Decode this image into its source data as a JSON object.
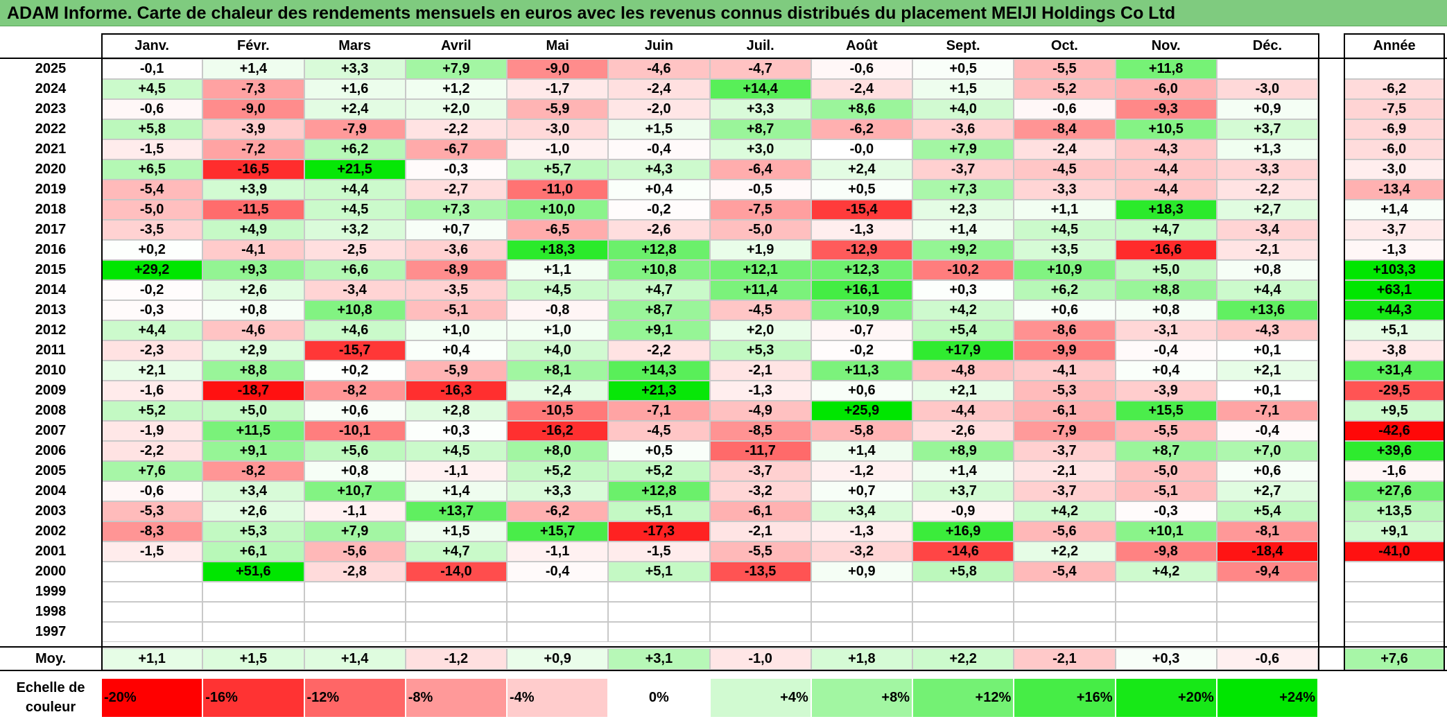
{
  "title": "ADAM Informe. Carte de chaleur des rendements mensuels en euros avec les revenus connus distribués du placement MEIJI Holdings Co Ltd",
  "chart_data": {
    "type": "heatmap",
    "title": "ADAM Informe. Carte de chaleur des rendements mensuels en euros avec les revenus connus distribués du placement MEIJI Holdings Co Ltd",
    "columns": [
      "Janv.",
      "Févr.",
      "Mars",
      "Avril",
      "Mai",
      "Juin",
      "Juil.",
      "Août",
      "Sept.",
      "Oct.",
      "Nov.",
      "Déc."
    ],
    "year_column_label": "Année",
    "rows": [
      {
        "year": "2025",
        "values": [
          "-0,1",
          "+1,4",
          "+3,3",
          "+7,9",
          "-9,0",
          "-4,6",
          "-4,7",
          "-0,6",
          "+0,5",
          "-5,5",
          "+11,8",
          ""
        ],
        "annual": ""
      },
      {
        "year": "2024",
        "values": [
          "+4,5",
          "-7,3",
          "+1,6",
          "+1,2",
          "-1,7",
          "-2,4",
          "+14,4",
          "-2,4",
          "+1,5",
          "-5,2",
          "-6,0",
          "-3,0"
        ],
        "annual": "-6,2"
      },
      {
        "year": "2023",
        "values": [
          "-0,6",
          "-9,0",
          "+2,4",
          "+2,0",
          "-5,9",
          "-2,0",
          "+3,3",
          "+8,6",
          "+4,0",
          "-0,6",
          "-9,3",
          "+0,9"
        ],
        "annual": "-7,5"
      },
      {
        "year": "2022",
        "values": [
          "+5,8",
          "-3,9",
          "-7,9",
          "-2,2",
          "-3,0",
          "+1,5",
          "+8,7",
          "-6,2",
          "-3,6",
          "-8,4",
          "+10,5",
          "+3,7"
        ],
        "annual": "-6,9"
      },
      {
        "year": "2021",
        "values": [
          "-1,5",
          "-7,2",
          "+6,2",
          "-6,7",
          "-1,0",
          "-0,4",
          "+3,0",
          "-0,0",
          "+7,9",
          "-2,4",
          "-4,3",
          "+1,3"
        ],
        "annual": "-6,0"
      },
      {
        "year": "2020",
        "values": [
          "+6,5",
          "-16,5",
          "+21,5",
          "-0,3",
          "+5,7",
          "+4,3",
          "-6,4",
          "+2,4",
          "-3,7",
          "-4,5",
          "-4,4",
          "-3,3"
        ],
        "annual": "-3,0"
      },
      {
        "year": "2019",
        "values": [
          "-5,4",
          "+3,9",
          "+4,4",
          "-2,7",
          "-11,0",
          "+0,4",
          "-0,5",
          "+0,5",
          "+7,3",
          "-3,3",
          "-4,4",
          "-2,2"
        ],
        "annual": "-13,4"
      },
      {
        "year": "2018",
        "values": [
          "-5,0",
          "-11,5",
          "+4,5",
          "+7,3",
          "+10,0",
          "-0,2",
          "-7,5",
          "-15,4",
          "+2,3",
          "+1,1",
          "+18,3",
          "+2,7"
        ],
        "annual": "+1,4"
      },
      {
        "year": "2017",
        "values": [
          "-3,5",
          "+4,9",
          "+3,2",
          "+0,7",
          "-6,5",
          "-2,6",
          "-5,0",
          "-1,3",
          "+1,4",
          "+4,5",
          "+4,7",
          "-3,4"
        ],
        "annual": "-3,7"
      },
      {
        "year": "2016",
        "values": [
          "+0,2",
          "-4,1",
          "-2,5",
          "-3,6",
          "+18,3",
          "+12,8",
          "+1,9",
          "-12,9",
          "+9,2",
          "+3,5",
          "-16,6",
          "-2,1"
        ],
        "annual": "-1,3"
      },
      {
        "year": "2015",
        "values": [
          "+29,2",
          "+9,3",
          "+6,6",
          "-8,9",
          "+1,1",
          "+10,8",
          "+12,1",
          "+12,3",
          "-10,2",
          "+10,9",
          "+5,0",
          "+0,8"
        ],
        "annual": "+103,3"
      },
      {
        "year": "2014",
        "values": [
          "-0,2",
          "+2,6",
          "-3,4",
          "-3,5",
          "+4,5",
          "+4,7",
          "+11,4",
          "+16,1",
          "+0,3",
          "+6,2",
          "+8,8",
          "+4,4"
        ],
        "annual": "+63,1"
      },
      {
        "year": "2013",
        "values": [
          "-0,3",
          "+0,8",
          "+10,8",
          "-5,1",
          "-0,8",
          "+8,7",
          "-4,5",
          "+10,9",
          "+4,2",
          "+0,6",
          "+0,8",
          "+13,6"
        ],
        "annual": "+44,3"
      },
      {
        "year": "2012",
        "values": [
          "+4,4",
          "-4,6",
          "+4,6",
          "+1,0",
          "+1,0",
          "+9,1",
          "+2,0",
          "-0,7",
          "+5,4",
          "-8,6",
          "-3,1",
          "-4,3"
        ],
        "annual": "+5,1"
      },
      {
        "year": "2011",
        "values": [
          "-2,3",
          "+2,9",
          "-15,7",
          "+0,4",
          "+4,0",
          "-2,2",
          "+5,3",
          "-0,2",
          "+17,9",
          "-9,9",
          "-0,4",
          "+0,1"
        ],
        "annual": "-3,8"
      },
      {
        "year": "2010",
        "values": [
          "+2,1",
          "+8,8",
          "+0,2",
          "-5,9",
          "+8,1",
          "+14,3",
          "-2,1",
          "+11,3",
          "-4,8",
          "-4,1",
          "+0,4",
          "+2,1"
        ],
        "annual": "+31,4"
      },
      {
        "year": "2009",
        "values": [
          "-1,6",
          "-18,7",
          "-8,2",
          "-16,3",
          "+2,4",
          "+21,3",
          "-1,3",
          "+0,6",
          "+2,1",
          "-5,3",
          "-3,9",
          "+0,1"
        ],
        "annual": "-29,5"
      },
      {
        "year": "2008",
        "values": [
          "+5,2",
          "+5,0",
          "+0,6",
          "+2,8",
          "-10,5",
          "-7,1",
          "-4,9",
          "+25,9",
          "-4,4",
          "-6,1",
          "+15,5",
          "-7,1"
        ],
        "annual": "+9,5"
      },
      {
        "year": "2007",
        "values": [
          "-1,9",
          "+11,5",
          "-10,1",
          "+0,3",
          "-16,2",
          "-4,5",
          "-8,5",
          "-5,8",
          "-2,6",
          "-7,9",
          "-5,5",
          "-0,4"
        ],
        "annual": "-42,6"
      },
      {
        "year": "2006",
        "values": [
          "-2,2",
          "+9,1",
          "+5,6",
          "+4,5",
          "+8,0",
          "+0,5",
          "-11,7",
          "+1,4",
          "+8,9",
          "-3,7",
          "+8,7",
          "+7,0"
        ],
        "annual": "+39,6"
      },
      {
        "year": "2005",
        "values": [
          "+7,6",
          "-8,2",
          "+0,8",
          "-1,1",
          "+5,2",
          "+5,2",
          "-3,7",
          "-1,2",
          "+1,4",
          "-2,1",
          "-5,0",
          "+0,6"
        ],
        "annual": "-1,6"
      },
      {
        "year": "2004",
        "values": [
          "-0,6",
          "+3,4",
          "+10,7",
          "+1,4",
          "+3,3",
          "+12,8",
          "-3,2",
          "+0,7",
          "+3,7",
          "-3,7",
          "-5,1",
          "+2,7"
        ],
        "annual": "+27,6"
      },
      {
        "year": "2003",
        "values": [
          "-5,3",
          "+2,6",
          "-1,1",
          "+13,7",
          "-6,2",
          "+5,1",
          "-6,1",
          "+3,4",
          "-0,9",
          "+4,2",
          "-0,3",
          "+5,4"
        ],
        "annual": "+13,5"
      },
      {
        "year": "2002",
        "values": [
          "-8,3",
          "+5,3",
          "+7,9",
          "+1,5",
          "+15,7",
          "-17,3",
          "-2,1",
          "-1,3",
          "+16,9",
          "-5,6",
          "+10,1",
          "-8,1"
        ],
        "annual": "+9,1"
      },
      {
        "year": "2001",
        "values": [
          "-1,5",
          "+6,1",
          "-5,6",
          "+4,7",
          "-1,1",
          "-1,5",
          "-5,5",
          "-3,2",
          "-14,6",
          "+2,2",
          "-9,8",
          "-18,4"
        ],
        "annual": "-41,0"
      },
      {
        "year": "2000",
        "values": [
          "",
          "+51,6",
          "-2,8",
          "-14,0",
          "-0,4",
          "+5,1",
          "-13,5",
          "+0,9",
          "+5,8",
          "-5,4",
          "+4,2",
          "-9,4"
        ],
        "annual": ""
      },
      {
        "year": "1999",
        "values": [
          "",
          "",
          "",
          "",
          "",
          "",
          "",
          "",
          "",
          "",
          "",
          ""
        ],
        "annual": ""
      },
      {
        "year": "1998",
        "values": [
          "",
          "",
          "",
          "",
          "",
          "",
          "",
          "",
          "",
          "",
          "",
          ""
        ],
        "annual": ""
      },
      {
        "year": "1997",
        "values": [
          "",
          "",
          "",
          "",
          "",
          "",
          "",
          "",
          "",
          "",
          "",
          ""
        ],
        "annual": ""
      }
    ],
    "average": {
      "label": "Moy.",
      "values": [
        "+1,1",
        "+1,5",
        "+1,4",
        "-1,2",
        "+0,9",
        "+3,1",
        "-1,0",
        "+1,8",
        "+2,2",
        "-2,1",
        "+0,3",
        "-0,6"
      ],
      "annual": "+7,6"
    },
    "scale": {
      "label": "Echelle de couleur",
      "steps": [
        {
          "label": "-20%",
          "value": -20
        },
        {
          "label": "-16%",
          "value": -16
        },
        {
          "label": "-12%",
          "value": -12
        },
        {
          "label": "-8%",
          "value": -8
        },
        {
          "label": "-4%",
          "value": -4
        },
        {
          "label": "0%",
          "value": 0
        },
        {
          "label": "+4%",
          "value": 4
        },
        {
          "label": "+8%",
          "value": 8
        },
        {
          "label": "+12%",
          "value": 12
        },
        {
          "label": "+16%",
          "value": 16
        },
        {
          "label": "+20%",
          "value": 20
        },
        {
          "label": "+24%",
          "value": 24
        }
      ]
    },
    "colors": {
      "negative": "#ff0000",
      "neutral": "#ffffff",
      "positive": "#00e600"
    }
  }
}
